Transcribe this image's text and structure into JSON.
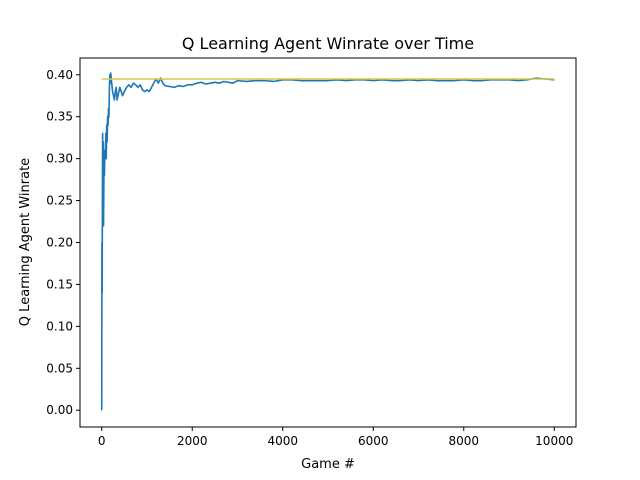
{
  "chart_data": {
    "type": "line",
    "title": "Q Learning Agent Winrate over Time",
    "xlabel": "Game #",
    "ylabel": "Q Learning Agent Winrate",
    "xlim": [
      -480,
      10480
    ],
    "ylim": [
      -0.02,
      0.42
    ],
    "xticks": [
      0,
      2000,
      4000,
      6000,
      8000,
      10000
    ],
    "xtick_labels": [
      "0",
      "2000",
      "4000",
      "6000",
      "8000",
      "10000"
    ],
    "yticks": [
      0.0,
      0.05,
      0.1,
      0.15,
      0.2,
      0.25,
      0.3,
      0.35,
      0.4
    ],
    "ytick_labels": [
      "0.00",
      "0.05",
      "0.10",
      "0.15",
      "0.20",
      "0.25",
      "0.30",
      "0.35",
      "0.40"
    ],
    "grid": false,
    "series": [
      {
        "color": "#1f77b4",
        "x": [
          0,
          5,
          10,
          15,
          20,
          25,
          30,
          35,
          40,
          50,
          60,
          70,
          80,
          90,
          100,
          110,
          120,
          130,
          140,
          150,
          160,
          170,
          180,
          190,
          200,
          220,
          240,
          260,
          280,
          300,
          320,
          340,
          360,
          380,
          400,
          430,
          460,
          500,
          550,
          600,
          650,
          700,
          750,
          800,
          850,
          900,
          950,
          1000,
          1050,
          1100,
          1150,
          1200,
          1250,
          1300,
          1350,
          1400,
          1500,
          1600,
          1700,
          1800,
          1900,
          2000,
          2100,
          2200,
          2300,
          2400,
          2500,
          2600,
          2700,
          2800,
          2900,
          3000,
          3200,
          3400,
          3600,
          3800,
          4000,
          4200,
          4400,
          4600,
          4800,
          5000,
          5200,
          5400,
          5600,
          5800,
          6000,
          6200,
          6400,
          6600,
          6800,
          7000,
          7200,
          7400,
          7600,
          7800,
          8000,
          8200,
          8400,
          8600,
          8800,
          9000,
          9200,
          9400,
          9600,
          9800,
          10000
        ],
        "y": [
          0.0,
          0.2,
          0.14,
          0.25,
          0.33,
          0.23,
          0.28,
          0.32,
          0.22,
          0.29,
          0.28,
          0.31,
          0.3,
          0.33,
          0.3,
          0.34,
          0.32,
          0.35,
          0.34,
          0.36,
          0.35,
          0.385,
          0.4,
          0.39,
          0.402,
          0.39,
          0.38,
          0.375,
          0.37,
          0.38,
          0.385,
          0.37,
          0.375,
          0.38,
          0.385,
          0.38,
          0.375,
          0.38,
          0.385,
          0.388,
          0.385,
          0.39,
          0.388,
          0.385,
          0.388,
          0.382,
          0.38,
          0.382,
          0.38,
          0.385,
          0.39,
          0.395,
          0.39,
          0.396,
          0.39,
          0.387,
          0.386,
          0.385,
          0.387,
          0.386,
          0.388,
          0.388,
          0.39,
          0.391,
          0.389,
          0.39,
          0.391,
          0.39,
          0.392,
          0.391,
          0.39,
          0.393,
          0.392,
          0.393,
          0.393,
          0.392,
          0.394,
          0.394,
          0.393,
          0.393,
          0.393,
          0.393,
          0.394,
          0.393,
          0.394,
          0.394,
          0.393,
          0.394,
          0.393,
          0.393,
          0.394,
          0.393,
          0.394,
          0.393,
          0.393,
          0.393,
          0.394,
          0.393,
          0.393,
          0.394,
          0.394,
          0.394,
          0.393,
          0.394,
          0.396,
          0.395,
          0.394
        ]
      },
      {
        "color": "#d7c94a",
        "x": [
          0,
          10000
        ],
        "y": [
          0.395,
          0.395
        ]
      }
    ]
  }
}
